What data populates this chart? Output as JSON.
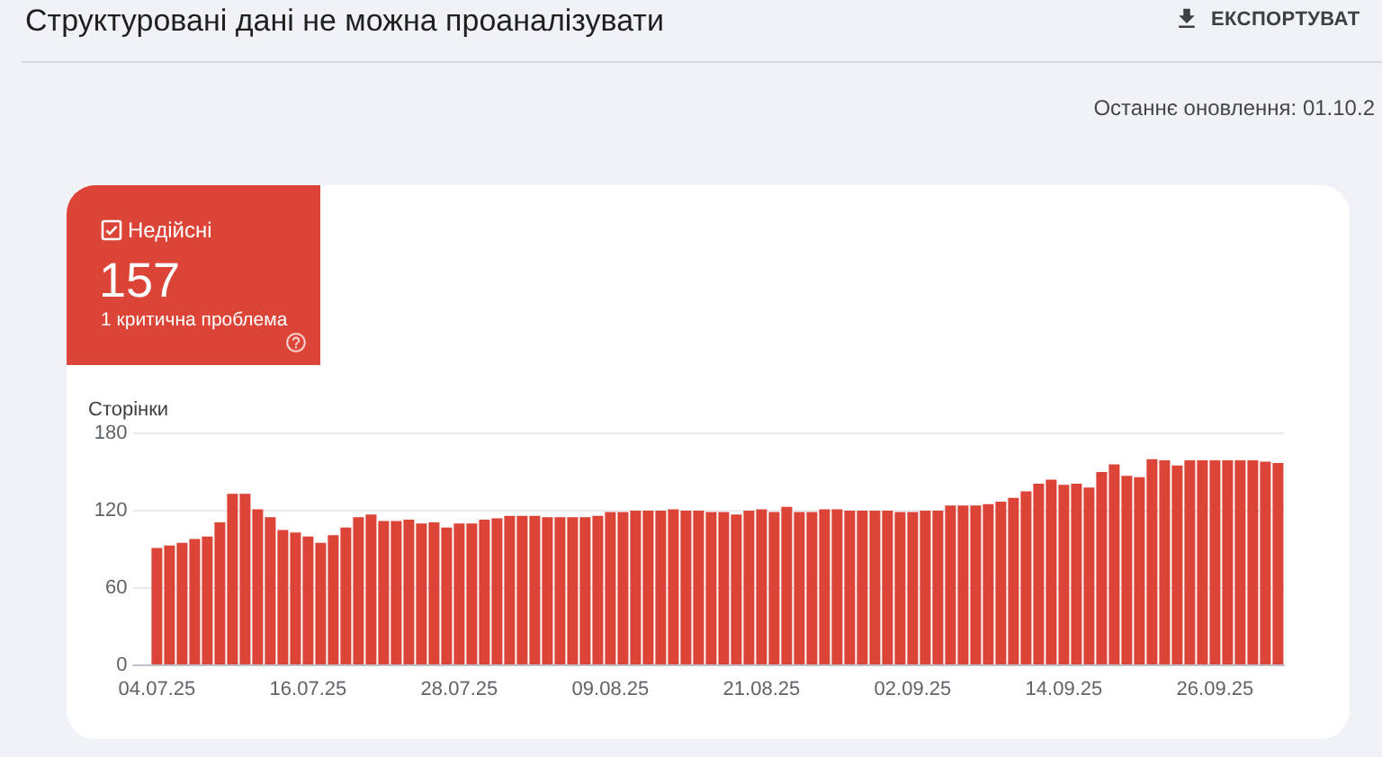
{
  "chart_data": {
    "type": "bar",
    "title": "Структуровані дані не можна проаналізувати",
    "ylabel": "Сторінки",
    "annotations": [
      "ЕКСПОРТУВАТ",
      "Останнє оновлення: 01.10.2",
      "Недійсні",
      "157",
      "1 критична проблема"
    ],
    "categories": [
      "04.07.25",
      null,
      null,
      null,
      null,
      null,
      null,
      null,
      null,
      null,
      null,
      null,
      "16.07.25",
      null,
      null,
      null,
      null,
      null,
      null,
      null,
      null,
      null,
      null,
      null,
      "28.07.25",
      null,
      null,
      null,
      null,
      null,
      null,
      null,
      null,
      null,
      null,
      null,
      "09.08.25",
      null,
      null,
      null,
      null,
      null,
      null,
      null,
      null,
      null,
      null,
      null,
      "21.08.25",
      null,
      null,
      null,
      null,
      null,
      null,
      null,
      null,
      null,
      null,
      null,
      "02.09.25",
      null,
      null,
      null,
      null,
      null,
      null,
      null,
      null,
      null,
      null,
      null,
      "14.09.25",
      null,
      null,
      null,
      null,
      null,
      null,
      null,
      null,
      null,
      null,
      null,
      "26.09.25",
      null,
      null,
      null,
      null,
      null
    ],
    "values": [
      91,
      93,
      95,
      98,
      100,
      111,
      133,
      133,
      121,
      115,
      105,
      103,
      100,
      95,
      101,
      107,
      115,
      117,
      112,
      112,
      113,
      110,
      111,
      107,
      110,
      110,
      113,
      114,
      116,
      116,
      116,
      115,
      115,
      115,
      115,
      116,
      119,
      119,
      120,
      120,
      120,
      121,
      120,
      120,
      119,
      119,
      117,
      120,
      121,
      119,
      123,
      119,
      119,
      121,
      121,
      120,
      120,
      120,
      120,
      119,
      119,
      120,
      120,
      124,
      124,
      124,
      125,
      127,
      130,
      135,
      141,
      144,
      140,
      141,
      138,
      150,
      156,
      147,
      146,
      160,
      159,
      155,
      159,
      159,
      159,
      159,
      159,
      159,
      158,
      157
    ],
    "color": "#db4437",
    "ylim": [
      0,
      180
    ],
    "yticks": [
      0,
      60,
      120,
      180
    ],
    "grid": "y"
  }
}
